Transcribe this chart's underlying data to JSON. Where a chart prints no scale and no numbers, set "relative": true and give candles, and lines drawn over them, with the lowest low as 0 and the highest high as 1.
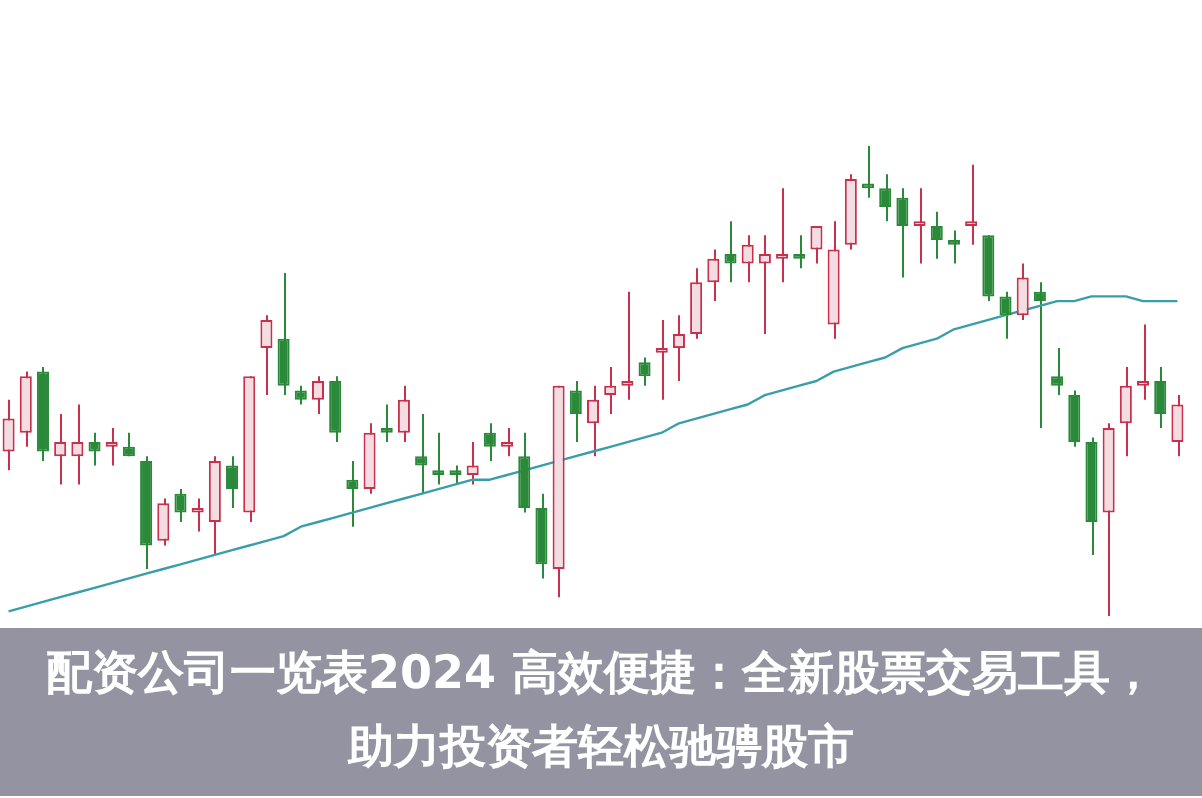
{
  "chart_data": {
    "type": "candlestick",
    "title": "配资公司一览表2024 高效便捷：全新股票交易工具，助力投资者轻松驰骋股市",
    "relative": true,
    "categories": [
      null,
      null,
      null,
      null,
      null,
      null,
      null,
      null,
      null,
      null,
      null,
      null,
      null,
      null,
      null,
      null,
      null,
      null,
      null,
      null,
      null,
      null,
      null,
      null,
      null,
      null,
      null,
      null,
      null,
      null,
      null,
      null,
      null,
      null,
      null,
      null,
      null,
      null,
      null,
      null,
      null,
      null,
      null,
      null,
      null,
      null,
      null,
      null,
      null,
      null,
      null,
      null,
      null,
      null,
      null,
      null,
      null,
      null,
      null,
      null,
      null,
      null,
      null,
      null,
      null,
      null,
      null,
      null,
      null
    ],
    "series": [
      {
        "type": "line",
        "color": "#3a9ea8",
        "values": [
          0.01,
          0.02,
          0.03,
          0.04,
          0.05,
          0.06,
          0.07,
          0.08,
          0.09,
          0.1,
          0.11,
          0.12,
          0.13,
          0.14,
          0.15,
          0.16,
          0.17,
          0.19,
          0.2,
          0.21,
          0.22,
          0.23,
          0.24,
          0.25,
          0.26,
          0.27,
          0.28,
          0.29,
          0.29,
          0.3,
          0.31,
          0.32,
          0.33,
          0.34,
          0.35,
          0.36,
          0.37,
          0.38,
          0.39,
          0.41,
          0.42,
          0.43,
          0.44,
          0.45,
          0.47,
          0.48,
          0.49,
          0.5,
          0.52,
          0.53,
          0.54,
          0.55,
          0.57,
          0.58,
          0.59,
          0.61,
          0.62,
          0.63,
          0.64,
          0.65,
          0.66,
          0.67,
          0.67,
          0.68,
          0.68,
          0.68,
          0.67,
          0.67,
          0.67
        ]
      },
      {
        "ohlc": [
          [
            0.35,
            0.46,
            0.31,
            0.42
          ],
          [
            0.39,
            0.52,
            0.36,
            0.51
          ],
          [
            0.52,
            0.53,
            0.33,
            0.35
          ],
          [
            0.34,
            0.43,
            0.28,
            0.37
          ],
          [
            0.34,
            0.45,
            0.28,
            0.37
          ],
          [
            0.37,
            0.39,
            0.32,
            0.35
          ],
          [
            0.36,
            0.4,
            0.32,
            0.37
          ],
          [
            0.36,
            0.39,
            0.34,
            0.34
          ],
          [
            0.33,
            0.34,
            0.1,
            0.15
          ],
          [
            0.16,
            0.25,
            0.15,
            0.24
          ],
          [
            0.26,
            0.27,
            0.2,
            0.22
          ],
          [
            0.22,
            0.25,
            0.18,
            0.23
          ],
          [
            0.2,
            0.34,
            0.13,
            0.33
          ],
          [
            0.32,
            0.34,
            0.23,
            0.27
          ],
          [
            0.22,
            0.51,
            0.2,
            0.51
          ],
          [
            0.57,
            0.64,
            0.47,
            0.63
          ],
          [
            0.59,
            0.73,
            0.47,
            0.49
          ],
          [
            0.48,
            0.49,
            0.45,
            0.46
          ],
          [
            0.46,
            0.51,
            0.43,
            0.5
          ],
          [
            0.5,
            0.51,
            0.37,
            0.39
          ],
          [
            0.29,
            0.33,
            0.19,
            0.27
          ],
          [
            0.27,
            0.41,
            0.26,
            0.39
          ],
          [
            0.4,
            0.45,
            0.37,
            0.39
          ],
          [
            0.39,
            0.49,
            0.37,
            0.46
          ],
          [
            0.34,
            0.43,
            0.26,
            0.32
          ],
          [
            0.31,
            0.39,
            0.28,
            0.3
          ],
          [
            0.31,
            0.32,
            0.28,
            0.3
          ],
          [
            0.3,
            0.37,
            0.28,
            0.32
          ],
          [
            0.39,
            0.41,
            0.33,
            0.36
          ],
          [
            0.36,
            0.4,
            0.34,
            0.37
          ],
          [
            0.34,
            0.39,
            0.22,
            0.23
          ],
          [
            0.23,
            0.26,
            0.08,
            0.11
          ],
          [
            0.1,
            0.49,
            0.04,
            0.49
          ],
          [
            0.48,
            0.5,
            0.37,
            0.43
          ],
          [
            0.41,
            0.49,
            0.34,
            0.46
          ],
          [
            0.47,
            0.53,
            0.43,
            0.49
          ],
          [
            0.49,
            0.69,
            0.46,
            0.5
          ],
          [
            0.54,
            0.55,
            0.49,
            0.51
          ],
          [
            0.56,
            0.63,
            0.46,
            0.57
          ],
          [
            0.57,
            0.64,
            0.5,
            0.6
          ],
          [
            0.6,
            0.74,
            0.59,
            0.71
          ],
          [
            0.71,
            0.78,
            0.67,
            0.76
          ],
          [
            0.77,
            0.84,
            0.71,
            0.75
          ],
          [
            0.75,
            0.81,
            0.71,
            0.79
          ],
          [
            0.75,
            0.81,
            0.6,
            0.77
          ],
          [
            0.76,
            0.91,
            0.71,
            0.77
          ],
          [
            0.77,
            0.81,
            0.74,
            0.76
          ],
          [
            0.78,
            0.83,
            0.75,
            0.83
          ],
          [
            0.62,
            0.84,
            0.59,
            0.78
          ],
          [
            0.79,
            0.94,
            0.78,
            0.93
          ],
          [
            0.92,
            1.0,
            0.89,
            0.91
          ],
          [
            0.91,
            0.94,
            0.84,
            0.87
          ],
          [
            0.89,
            0.91,
            0.72,
            0.83
          ],
          [
            0.83,
            0.91,
            0.75,
            0.84
          ],
          [
            0.83,
            0.86,
            0.76,
            0.8
          ],
          [
            0.8,
            0.82,
            0.75,
            0.79
          ],
          [
            0.83,
            0.96,
            0.79,
            0.84
          ],
          [
            0.81,
            0.81,
            0.67,
            0.68
          ],
          [
            0.68,
            0.69,
            0.59,
            0.64
          ],
          [
            0.64,
            0.75,
            0.63,
            0.72
          ],
          [
            0.69,
            0.71,
            0.4,
            0.67
          ],
          [
            0.51,
            0.57,
            0.47,
            0.49
          ],
          [
            0.47,
            0.48,
            0.36,
            0.37
          ],
          [
            0.37,
            0.38,
            0.13,
            0.2
          ],
          [
            0.22,
            0.41,
            0.0,
            0.4
          ],
          [
            0.41,
            0.53,
            0.34,
            0.49
          ],
          [
            0.49,
            0.62,
            0.46,
            0.5
          ],
          [
            0.5,
            0.53,
            0.4,
            0.43
          ],
          [
            0.37,
            0.47,
            0.34,
            0.45
          ]
        ]
      }
    ]
  }
}
